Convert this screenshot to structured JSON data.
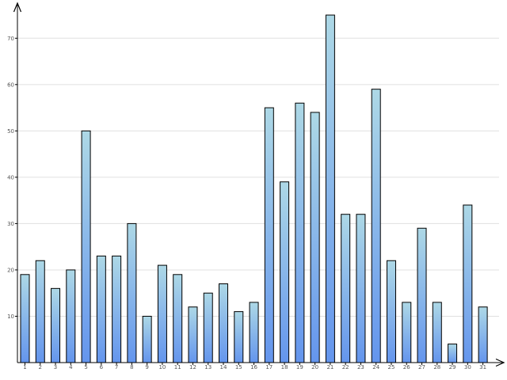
{
  "chart_data": {
    "type": "bar",
    "title": "",
    "xlabel": "",
    "ylabel": "",
    "categories": [
      "1",
      "2",
      "3",
      "4",
      "5",
      "6",
      "7",
      "8",
      "9",
      "10",
      "11",
      "12",
      "13",
      "14",
      "15",
      "16",
      "17",
      "18",
      "19",
      "20",
      "21",
      "22",
      "23",
      "24",
      "25",
      "26",
      "27",
      "28",
      "29",
      "30",
      "31"
    ],
    "values": [
      19,
      22,
      16,
      20,
      50,
      23,
      23,
      30,
      10,
      21,
      19,
      12,
      15,
      17,
      11,
      13,
      55,
      39,
      56,
      54,
      75,
      32,
      32,
      59,
      22,
      13,
      29,
      13,
      4,
      34,
      12
    ],
    "ylim": [
      0,
      78
    ],
    "yticks": [
      10,
      20,
      30,
      40,
      50,
      60,
      70
    ],
    "grid": true,
    "legend": "none",
    "colors": {
      "bar_top": "#add8e6",
      "bar_bottom": "#6495ed",
      "bar_outline": "#000000",
      "grid": "#e0e0e0",
      "axis": "#000000",
      "tick_text": "#555555"
    }
  }
}
